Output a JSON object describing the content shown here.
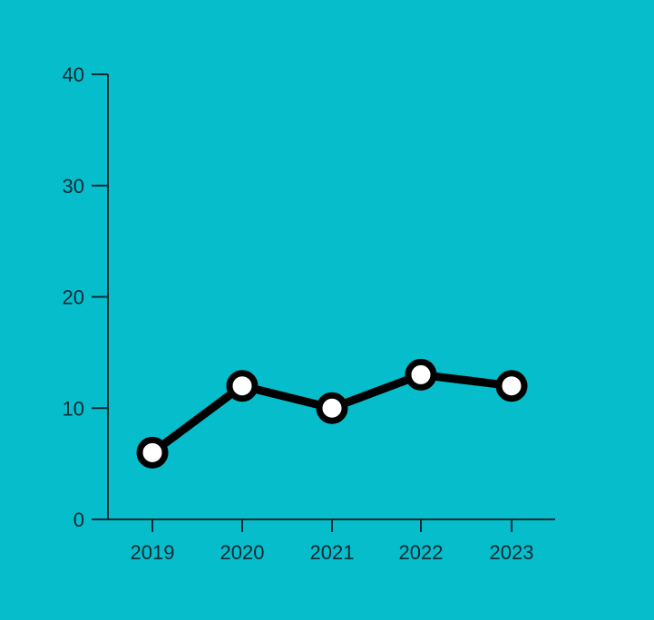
{
  "chart_data": {
    "type": "line",
    "categories": [
      "2019",
      "2020",
      "2021",
      "2022",
      "2023"
    ],
    "series": [
      {
        "values": [
          6,
          12,
          10,
          13,
          12
        ]
      }
    ],
    "yticks": [
      "0",
      "10",
      "20",
      "30",
      "40"
    ],
    "ylim": [
      0,
      40
    ],
    "grid": false,
    "colors": {
      "background": "#06bdcb",
      "line": "#000000",
      "marker_fill": "#ffffff",
      "axis": "#0b2a33"
    }
  }
}
